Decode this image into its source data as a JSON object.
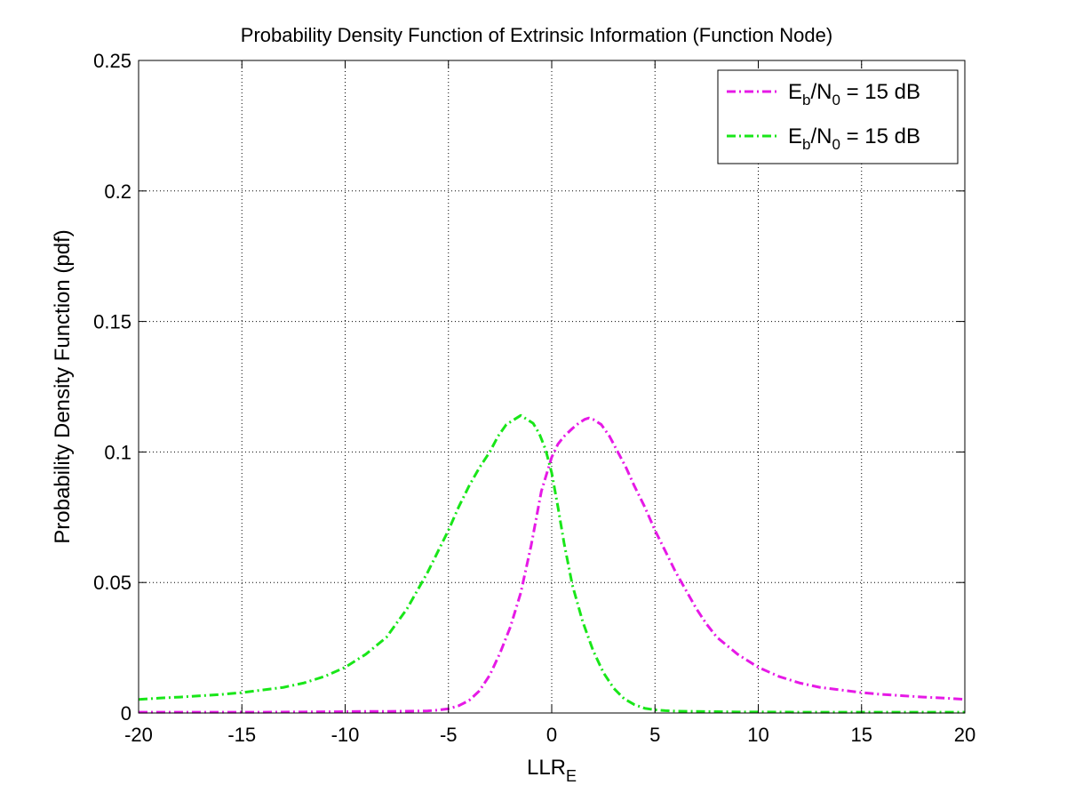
{
  "chart_data": {
    "type": "line",
    "title": "Probability Density Function of Extrinsic Information (Function Node)",
    "xlabel": {
      "main": "LLR",
      "sub": "E"
    },
    "ylabel": "Probability Density Function (pdf)",
    "xlim": [
      -20,
      20
    ],
    "ylim": [
      0,
      0.25
    ],
    "x_ticks": [
      -20,
      -15,
      -10,
      -5,
      0,
      5,
      10,
      15,
      20
    ],
    "y_ticks": [
      0,
      0.05,
      0.1,
      0.15,
      0.2,
      0.25
    ],
    "x_tick_labels": [
      "-20",
      "-15",
      "-10",
      "-5",
      "0",
      "5",
      "10",
      "15",
      "20"
    ],
    "y_tick_labels": [
      "0",
      "0.05",
      "0.1",
      "0.15",
      "0.2",
      "0.25"
    ],
    "grid": true,
    "legend_position": "top-right",
    "series": [
      {
        "legend": {
          "e": "E",
          "b": "b",
          "n": "/N",
          "zero": "0",
          "rest": " = 15 dB"
        },
        "color": "#e619e6",
        "line_style": "dash-dot",
        "x": [
          -20,
          -18,
          -16,
          -14,
          -12,
          -10,
          -9,
          -8,
          -7,
          -6,
          -5.5,
          -5,
          -4.5,
          -4,
          -3.5,
          -3,
          -2.5,
          -2,
          -1.5,
          -1,
          -0.5,
          0,
          0.3,
          0.6,
          1,
          1.3,
          1.6,
          1.8,
          2,
          2.4,
          2.8,
          3.2,
          3.6,
          4,
          4.5,
          5,
          5.5,
          6,
          6.5,
          7,
          7.5,
          8,
          9,
          10,
          11,
          12,
          13,
          14,
          15,
          16,
          17,
          18,
          19,
          20
        ],
        "y": [
          0.0003,
          0.0003,
          0.0003,
          0.0003,
          0.0004,
          0.0005,
          0.0006,
          0.0006,
          0.0007,
          0.0008,
          0.0011,
          0.0016,
          0.0028,
          0.0048,
          0.0085,
          0.0145,
          0.023,
          0.033,
          0.046,
          0.064,
          0.085,
          0.098,
          0.103,
          0.106,
          0.109,
          0.111,
          0.1125,
          0.113,
          0.1125,
          0.1105,
          0.106,
          0.1,
          0.094,
          0.087,
          0.079,
          0.07,
          0.062,
          0.054,
          0.047,
          0.04,
          0.034,
          0.029,
          0.0225,
          0.0175,
          0.014,
          0.0115,
          0.0098,
          0.0088,
          0.0078,
          0.0071,
          0.0066,
          0.0061,
          0.0057,
          0.0052
        ]
      },
      {
        "legend": {
          "e": "E",
          "b": "b",
          "n": "/N",
          "zero": "0",
          "rest": " = 15 dB"
        },
        "color": "#19e619",
        "line_style": "dash-dot",
        "x": [
          -20,
          -19,
          -18,
          -17,
          -16,
          -15,
          -14,
          -13,
          -12,
          -11,
          -10,
          -9,
          -8,
          -7,
          -6.5,
          -6,
          -5.5,
          -5,
          -4.5,
          -4,
          -3.5,
          -3,
          -2.6,
          -2.2,
          -1.8,
          -1.5,
          -1.2,
          -0.9,
          -0.6,
          -0.3,
          0,
          0.3,
          0.6,
          1,
          1.5,
          2,
          2.5,
          3,
          3.5,
          4,
          4.5,
          5,
          5.5,
          6,
          7,
          8,
          9,
          10,
          12,
          14,
          16,
          18,
          20
        ],
        "y": [
          0.0052,
          0.0057,
          0.0061,
          0.0066,
          0.0071,
          0.0078,
          0.0088,
          0.0098,
          0.0115,
          0.014,
          0.0175,
          0.0225,
          0.029,
          0.04,
          0.047,
          0.054,
          0.062,
          0.07,
          0.079,
          0.087,
          0.094,
          0.1,
          0.106,
          0.1105,
          0.1125,
          0.114,
          0.1125,
          0.111,
          0.107,
          0.101,
          0.092,
          0.079,
          0.065,
          0.049,
          0.035,
          0.024,
          0.0155,
          0.0095,
          0.0055,
          0.0032,
          0.0018,
          0.0012,
          0.0009,
          0.0007,
          0.0006,
          0.0005,
          0.0004,
          0.0004,
          0.0003,
          0.0003,
          0.0003,
          0.0003,
          0.0003
        ]
      }
    ]
  }
}
